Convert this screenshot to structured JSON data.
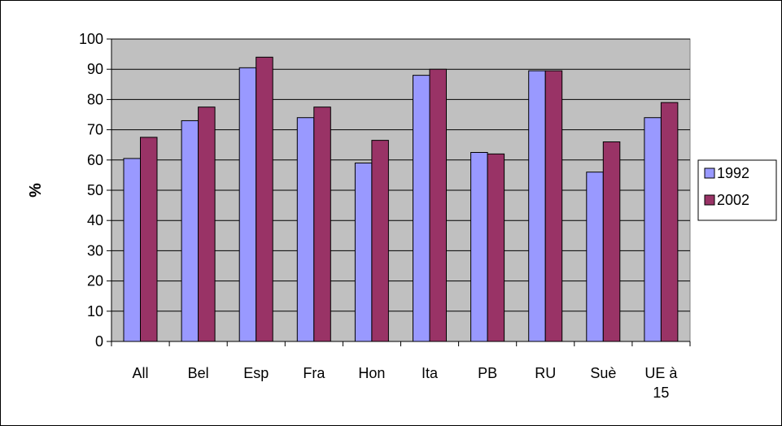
{
  "chart_data": {
    "type": "bar",
    "title": "",
    "xlabel": "",
    "ylabel": "%",
    "ylim": [
      0,
      100
    ],
    "yticks": [
      0,
      10,
      20,
      30,
      40,
      50,
      60,
      70,
      80,
      90,
      100
    ],
    "grid": true,
    "legend": "right",
    "categories": [
      "All",
      "Bel",
      "Esp",
      "Fra",
      "Hon",
      "Ita",
      "PB",
      "RU",
      "Suè",
      "UE à 15"
    ],
    "series": [
      {
        "name": "1992",
        "color": "#9999ff",
        "values": [
          60.5,
          73,
          90.5,
          74,
          59,
          88,
          62.5,
          89.5,
          56,
          74
        ]
      },
      {
        "name": "2002",
        "color": "#993366",
        "values": [
          67.5,
          77.5,
          94,
          77.5,
          66.5,
          90,
          62,
          89.5,
          66,
          79
        ]
      }
    ],
    "plot_background": "#c0c0c0"
  }
}
